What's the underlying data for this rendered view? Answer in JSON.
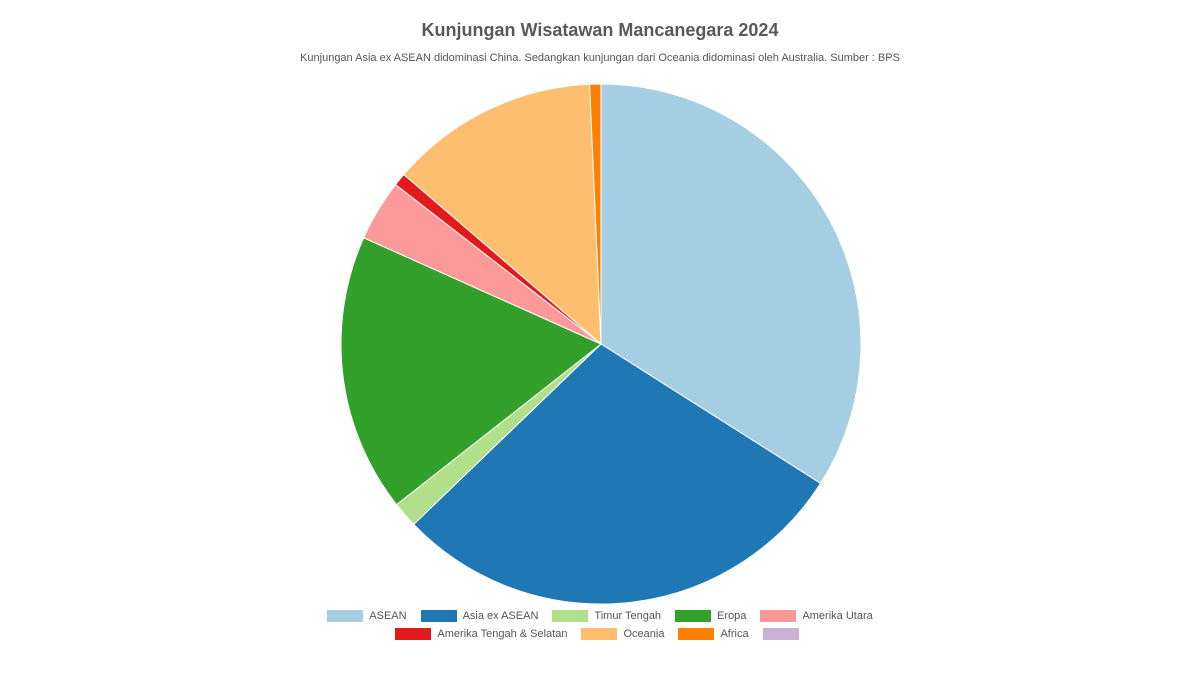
{
  "chart_data": {
    "type": "pie",
    "title": "Kunjungan Wisatawan Mancanegara 2024",
    "subtitle": "Kunjungan Asia ex ASEAN didominasi China. Sedangkan kunjungan dari Oceania didominasi oleh Australia. Sumber : BPS",
    "start_angle_deg": 0,
    "direction": "clockwise",
    "legend_position": "bottom",
    "slices": [
      {
        "name": "ASEAN",
        "value": 34.0,
        "color": "#a6cee3"
      },
      {
        "name": "Asia ex ASEAN",
        "value": 28.8,
        "color": "#1f78b4"
      },
      {
        "name": "Timur Tengah",
        "value": 1.6,
        "color": "#b2df8a"
      },
      {
        "name": "Eropa",
        "value": 17.3,
        "color": "#33a02c"
      },
      {
        "name": "Amerika Utara",
        "value": 3.8,
        "color": "#fb9a99"
      },
      {
        "name": "Amerika Tengah & Selatan",
        "value": 0.8,
        "color": "#e31a1c"
      },
      {
        "name": "Oceania",
        "value": 13.0,
        "color": "#fdbf6f"
      },
      {
        "name": "Africa",
        "value": 0.7,
        "color": "#ff7f00"
      },
      {
        "name": "",
        "value": 0,
        "color": "#cab2d6"
      }
    ]
  }
}
